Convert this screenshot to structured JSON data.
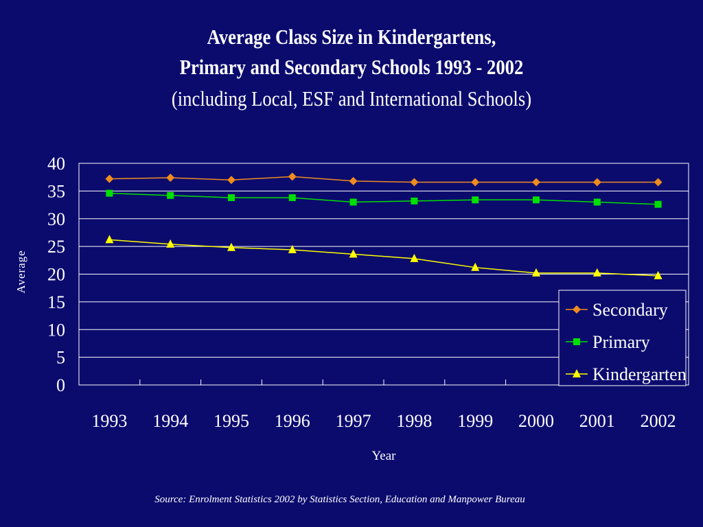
{
  "title": {
    "line1": "Average Class Size in Kindergartens,",
    "line2": "Primary and Secondary Schools 1993 - 2002",
    "line3": "(including Local, ESF and International Schools)"
  },
  "source": "Source: Enrolment Statistics 2002 by Statistics Section, Education and Manpower Bureau",
  "colors": {
    "background": "#0b0b6e",
    "gridlines": "#ffffff",
    "text": "#ffffff"
  },
  "chart_data": {
    "type": "line",
    "title": "Average Class Size in Kindergartens, Primary and Secondary Schools 1993 - 2002 (including Local, ESF and International Schools)",
    "xlabel": "Year",
    "ylabel": "Average",
    "categories": [
      "1993",
      "1994",
      "1995",
      "1996",
      "1997",
      "1998",
      "1999",
      "2000",
      "2001",
      "2002"
    ],
    "ylim": [
      0,
      40
    ],
    "yticks": [
      "0",
      "5",
      "10",
      "15",
      "20",
      "25",
      "30",
      "35",
      "40"
    ],
    "grid": true,
    "legend_position": "bottom-right inside plot",
    "series": [
      {
        "name": "Secondary",
        "marker": "diamond",
        "color": "#f08c1e",
        "values": [
          37.2,
          37.4,
          37.0,
          37.6,
          36.8,
          36.6,
          36.6,
          36.6,
          36.6,
          36.6
        ]
      },
      {
        "name": "Primary",
        "marker": "square",
        "color": "#00e000",
        "values": [
          34.6,
          34.2,
          33.8,
          33.8,
          33.0,
          33.2,
          33.4,
          33.4,
          33.0,
          32.6
        ]
      },
      {
        "name": "Kindergarten",
        "marker": "triangle",
        "color": "#ffff00",
        "values": [
          26.2,
          25.4,
          24.8,
          24.4,
          23.6,
          22.8,
          21.2,
          20.2,
          20.2,
          19.7
        ]
      }
    ]
  }
}
